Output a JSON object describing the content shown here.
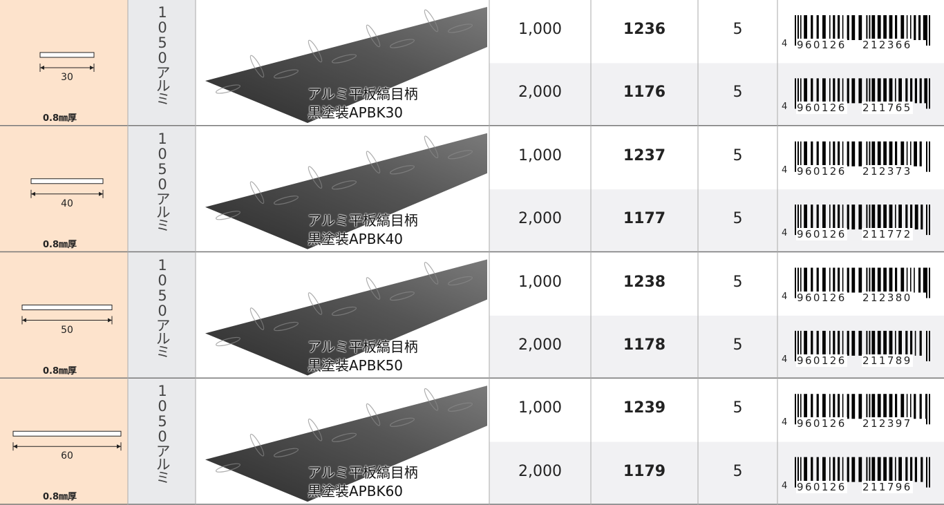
{
  "groups": [
    {
      "width": 30,
      "thickness": "0.8㎜厚",
      "material": "1050アルミ",
      "name": [
        "アルミ平板縞目柄",
        "黒塗装APBK30"
      ],
      "variants": [
        {
          "length": "1,000",
          "code": 1236,
          "qty": 5,
          "barcode": [
            "4",
            "960126",
            "212366"
          ]
        },
        {
          "length": "2,000",
          "code": 1176,
          "qty": 5,
          "barcode": [
            "4",
            "960126",
            "211765"
          ]
        }
      ]
    },
    {
      "width": 40,
      "thickness": "0.8㎜厚",
      "material": "1050アルミ",
      "name": [
        "アルミ平板縞目柄",
        "黒塗装APBK40"
      ],
      "variants": [
        {
          "length": "1,000",
          "code": 1237,
          "qty": 5,
          "barcode": [
            "4",
            "960126",
            "212373"
          ]
        },
        {
          "length": "2,000",
          "code": 1177,
          "qty": 5,
          "barcode": [
            "4",
            "960126",
            "211772"
          ]
        }
      ]
    },
    {
      "width": 50,
      "thickness": "0.8㎜厚",
      "material": "1050アルミ",
      "name": [
        "アルミ平板縞目柄",
        "黒塗装APBK50"
      ],
      "variants": [
        {
          "length": "1,000",
          "code": 1238,
          "qty": 5,
          "barcode": [
            "4",
            "960126",
            "212380"
          ]
        },
        {
          "length": "2,000",
          "code": 1178,
          "qty": 5,
          "barcode": [
            "4",
            "960126",
            "211789"
          ]
        }
      ]
    },
    {
      "width": 60,
      "thickness": "0.8㎜厚",
      "material": "1050アルミ",
      "name": [
        "アルミ平板縞目柄",
        "黒塗装APBK60"
      ],
      "variants": [
        {
          "length": "1,000",
          "code": 1239,
          "qty": 5,
          "barcode": [
            "4",
            "960126",
            "212397"
          ]
        },
        {
          "length": "2,000",
          "code": 1179,
          "qty": 5,
          "barcode": [
            "4",
            "960126",
            "211796"
          ]
        }
      ]
    }
  ]
}
